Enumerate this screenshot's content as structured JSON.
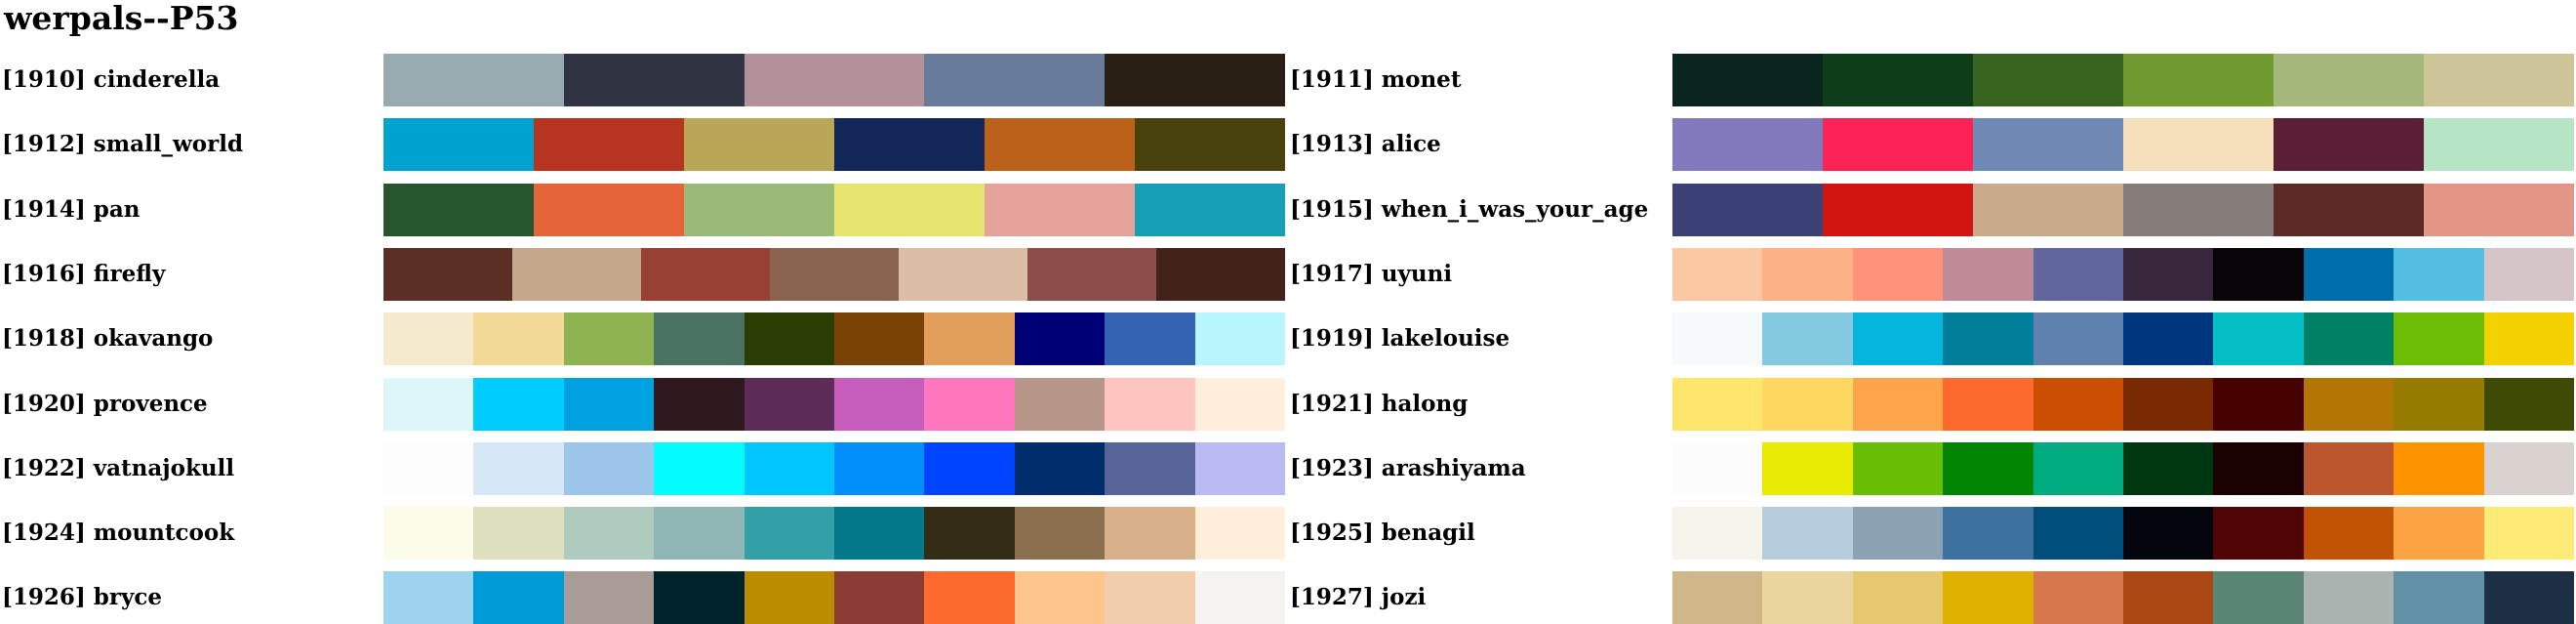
{
  "title": "werpals--P53",
  "chart_data": {
    "type": "palette_swatches",
    "title": "werpals--P53",
    "palettes": [
      {
        "label": "[1910] cinderella",
        "colors": [
          "#97aab0",
          "#313443",
          "#b3919a",
          "#697b9a",
          "#291f14"
        ]
      },
      {
        "label": "[1911] monet",
        "colors": [
          "#08241c",
          "#0f3d1a",
          "#37631e",
          "#709a30",
          "#a5b87c",
          "#cdc597"
        ]
      },
      {
        "label": "[1912] small_world",
        "colors": [
          "#00a2d0",
          "#b73421",
          "#b9a656",
          "#13275a",
          "#bc6119",
          "#4a420d"
        ]
      },
      {
        "label": "[1913] alice",
        "colors": [
          "#8279bd",
          "#fb2255",
          "#6e89b4",
          "#f5e0bb",
          "#5a1f36",
          "#b8e4c6"
        ]
      },
      {
        "label": "[1914] pan",
        "colors": [
          "#27552e",
          "#e6643a",
          "#9abb77",
          "#e5e46e",
          "#e7a19b",
          "#15a0b7"
        ]
      },
      {
        "label": "[1915] when_i_was_your_age",
        "colors": [
          "#3b4174",
          "#d11510",
          "#c8a98b",
          "#857d79",
          "#5d2b27",
          "#e39685"
        ]
      },
      {
        "label": "[1916] firefly",
        "colors": [
          "#5c2f25",
          "#c4a88c",
          "#983f36",
          "#8b644f",
          "#dcbda5",
          "#8b4e48",
          "#43221c"
        ]
      },
      {
        "label": "[1917] uyuni",
        "colors": [
          "#fcc8a1",
          "#fdb287",
          "#fe937b",
          "#bf8b97",
          "#61679b",
          "#39273d",
          "#0a0509",
          "#006eac",
          "#53c0e3",
          "#d5c5c6"
        ]
      },
      {
        "label": "[1918] okavango",
        "colors": [
          "#f5ebcc",
          "#f4da97",
          "#8fb352",
          "#4b7364",
          "#2c3d04",
          "#7b4205",
          "#e29f5b",
          "#000076",
          "#3363b2",
          "#b8f5fc"
        ]
      },
      {
        "label": "[1919] lakelouise",
        "colors": [
          "#f6fafa",
          "#83c9e1",
          "#04b6dd",
          "#007e9a",
          "#6080ae",
          "#003680",
          "#03bec4",
          "#018163",
          "#6cbd04",
          "#f3d100"
        ]
      },
      {
        "label": "[1920] provence",
        "colors": [
          "#ddf6f8",
          "#00cdfe",
          "#00a1e1",
          "#2f191f",
          "#5e2c59",
          "#c65cbb",
          "#ff75be",
          "#b89589",
          "#ffc5be",
          "#feeedc"
        ]
      },
      {
        "label": "[1921] halong",
        "colors": [
          "#fee56c",
          "#fed861",
          "#fea54c",
          "#fe6a2d",
          "#cc4e03",
          "#7a2a03",
          "#450200",
          "#b47603",
          "#977a00",
          "#3f4a04"
        ]
      },
      {
        "label": "[1922] vatnajokull",
        "colors": [
          "#fdfdfd",
          "#d6e7f7",
          "#9cc6e9",
          "#03fcfe",
          "#01c5fe",
          "#028ffe",
          "#0045fe",
          "#012d6d",
          "#586599",
          "#b8bcf3"
        ]
      },
      {
        "label": "[1923] arashiyama",
        "colors": [
          "#fcfcfc",
          "#e9ec02",
          "#67be05",
          "#018402",
          "#01ac81",
          "#003713",
          "#1a0202",
          "#bb562e",
          "#fe9300",
          "#d9d2cf"
        ]
      },
      {
        "label": "[1924] mountcook",
        "colors": [
          "#fdfbea",
          "#dedfc0",
          "#aecbbd",
          "#8fb6b5",
          "#32a0a6",
          "#02798b",
          "#332d16",
          "#8b6f51",
          "#dab08a",
          "#feefdb"
        ]
      },
      {
        "label": "[1925] benagil",
        "colors": [
          "#f4f4ea",
          "#b6cbdb",
          "#8aa2b4",
          "#3d72a0",
          "#014d7b",
          "#04060d",
          "#500604",
          "#c15304",
          "#fca343",
          "#feeb75"
        ]
      },
      {
        "label": "[1926] bryce",
        "colors": [
          "#9ed3ed",
          "#019ad9",
          "#a99c98",
          "#00222b",
          "#bb8c00",
          "#8a3c35",
          "#fe692e",
          "#fec58d",
          "#f2cdab",
          "#f4f3ef"
        ]
      },
      {
        "label": "[1927] jozi",
        "colors": [
          "#d1b68a",
          "#ebd69f",
          "#e5c86f",
          "#deb100",
          "#d6784b",
          "#a94814",
          "#5b8675",
          "#aab3b0",
          "#6191a6",
          "#1c2f45"
        ]
      }
    ]
  }
}
